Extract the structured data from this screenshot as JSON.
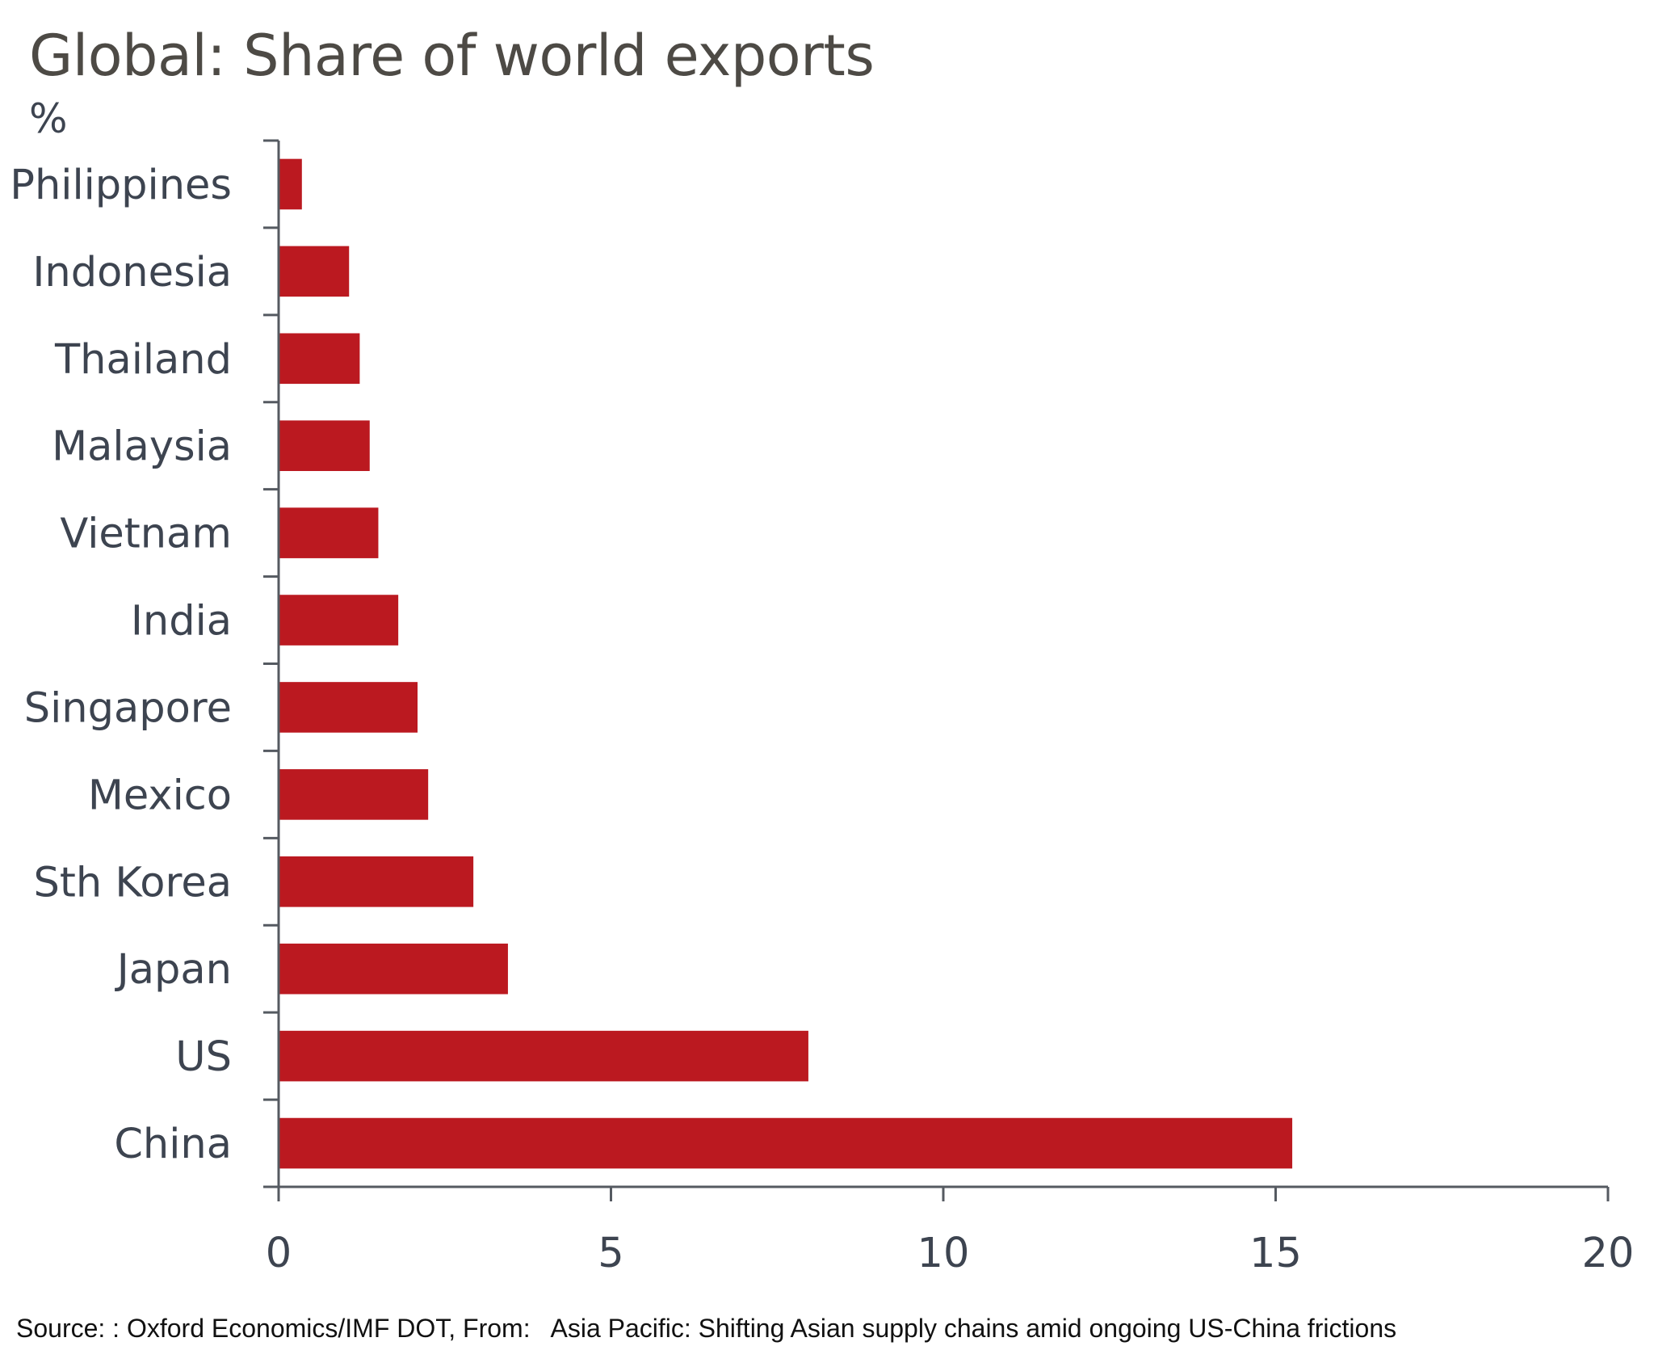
{
  "chart_data": {
    "type": "bar",
    "orientation": "horizontal",
    "title": "Global: Share of world exports",
    "ylabel": "%",
    "categories": [
      "Philippines",
      "Indonesia",
      "Thailand",
      "Malaysia",
      "Vietnam",
      "India",
      "Singapore",
      "Mexico",
      "Sth Korea",
      "Japan",
      "US",
      "China"
    ],
    "values": [
      0.35,
      1.06,
      1.22,
      1.37,
      1.5,
      1.8,
      2.09,
      2.25,
      2.93,
      3.45,
      7.97,
      15.25
    ],
    "xlim": [
      0,
      20
    ],
    "xticks": [
      "0",
      "5",
      "10",
      "15",
      "20"
    ],
    "grid": false,
    "bar_color": "#bb1920"
  },
  "source": "Source: : Oxford Economics/IMF DOT, From:   Asia Pacific: Shifting Asian supply chains amid ongoing US-China frictions"
}
